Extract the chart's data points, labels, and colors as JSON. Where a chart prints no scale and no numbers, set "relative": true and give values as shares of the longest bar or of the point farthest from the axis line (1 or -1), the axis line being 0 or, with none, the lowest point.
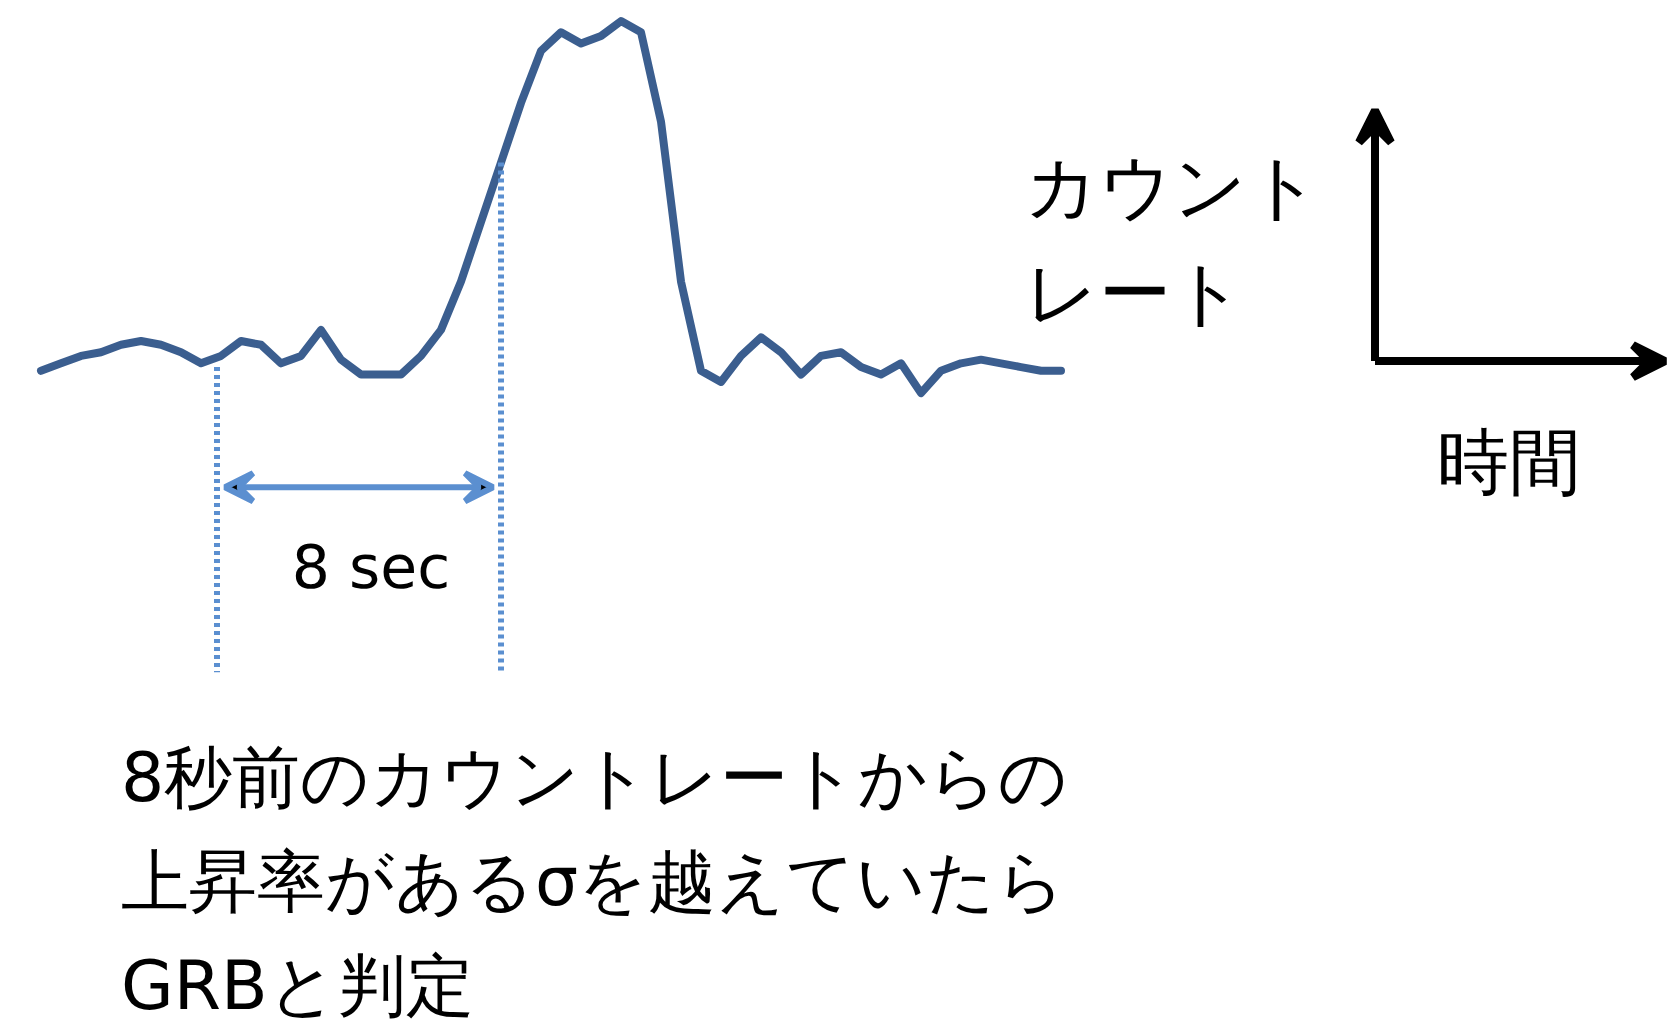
{
  "chart_data": {
    "type": "line",
    "relative": true,
    "categories": [
      null,
      null,
      null,
      null,
      null,
      null,
      null,
      null,
      null,
      null,
      null,
      null,
      null,
      null,
      null,
      null,
      null,
      null,
      null,
      null,
      null,
      null,
      null,
      null,
      null,
      null,
      null,
      null,
      null,
      null,
      null,
      null,
      null,
      null,
      null,
      null,
      null,
      null,
      null,
      null,
      null,
      null,
      null,
      null,
      null,
      null,
      null,
      null,
      null,
      null,
      null,
      null
    ],
    "series": [
      {
        "color": "#3b5e8f",
        "values": [
          0.06,
          0.08,
          0.1,
          0.11,
          0.13,
          0.14,
          0.13,
          0.11,
          0.08,
          0.1,
          0.14,
          0.13,
          0.08,
          0.1,
          0.17,
          0.09,
          0.05,
          0.05,
          0.05,
          0.1,
          0.17,
          0.3,
          0.46,
          0.62,
          0.78,
          0.92,
          0.97,
          0.94,
          0.96,
          1,
          0.97,
          0.73,
          0.3,
          0.06,
          0.03,
          0.1,
          0.15,
          0.11,
          0.05,
          0.1,
          0.11,
          0.07,
          0.05,
          0.08,
          0,
          0.06,
          0.08,
          0.09,
          0.08,
          0.07,
          0.06,
          0.06
        ]
      }
    ],
    "annotations": [
      "8 sec",
      "8秒前のカウントレートからの上昇率があるσを越えていたらGRBと判定",
      "カウントレート",
      "時間"
    ],
    "grid": false,
    "marker": "none",
    "line_style": "solid"
  }
}
